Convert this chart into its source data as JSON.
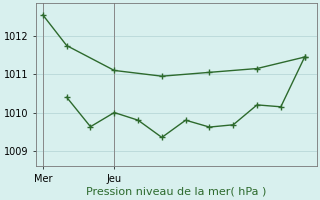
{
  "line1_x": [
    0,
    1,
    3,
    5,
    7,
    9,
    11
  ],
  "line1_y": [
    1012.55,
    1011.75,
    1011.1,
    1010.95,
    1011.05,
    1011.15,
    1011.45
  ],
  "line2_x": [
    1,
    2,
    3,
    4,
    5,
    6,
    7,
    8,
    9,
    10,
    11
  ],
  "line2_y": [
    1010.4,
    1009.63,
    1010.0,
    1009.8,
    1009.35,
    1009.8,
    1009.62,
    1009.68,
    1010.2,
    1010.15,
    1011.45
  ],
  "line_color": "#2d6a2d",
  "bg_color": "#d8f0ee",
  "grid_color": "#b8d8d8",
  "xlabel": "Pression niveau de la mer( hPa )",
  "yticks": [
    1009,
    1010,
    1011,
    1012
  ],
  "ylim": [
    1008.6,
    1012.85
  ],
  "xlim": [
    -0.3,
    11.5
  ],
  "xtick_positions": [
    0,
    3
  ],
  "xtick_labels": [
    "Mer",
    "Jeu"
  ],
  "vline_x": [
    0,
    3
  ],
  "vline_color": "#888888",
  "marker_size": 2.5,
  "linewidth": 1.0,
  "tick_fontsize": 7,
  "xlabel_fontsize": 8
}
